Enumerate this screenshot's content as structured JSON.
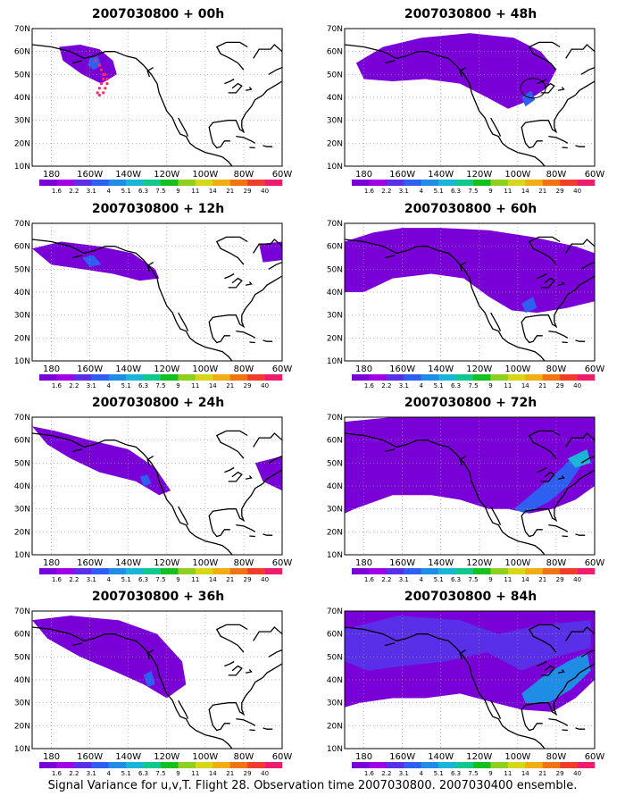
{
  "figure": {
    "caption": "Signal Variance for u,v,T. Flight 28. Observation time 2007030800. 2007030400 ensemble.",
    "lat_labels": [
      "10N",
      "20N",
      "30N",
      "40N",
      "50N",
      "60N",
      "70N"
    ],
    "lon_labels": [
      "180",
      "160W",
      "140W",
      "120W",
      "100W",
      "80W",
      "60W"
    ],
    "colorbar": {
      "labels": [
        "1.6",
        "2.2",
        "3.1",
        "4",
        "5.1",
        "6.3",
        "7.5",
        "9",
        "11",
        "14",
        "21",
        "29",
        "40"
      ],
      "colors": [
        "#7a00d8",
        "#a000e6",
        "#5a2fe8",
        "#2f5ff0",
        "#1f8ce6",
        "#19b5d6",
        "#11c88c",
        "#14c020",
        "#8fd01e",
        "#d8d618",
        "#f0ae14",
        "#f07412",
        "#f03c2a",
        "#ee1c6e"
      ]
    },
    "panels": [
      {
        "title": "2007030800 + 00h"
      },
      {
        "title": "2007030800 + 48h"
      },
      {
        "title": "2007030800 + 12h"
      },
      {
        "title": "2007030800 + 60h"
      },
      {
        "title": "2007030800 + 24h"
      },
      {
        "title": "2007030800 + 72h"
      },
      {
        "title": "2007030800 + 36h"
      },
      {
        "title": "2007030800 + 84h"
      }
    ]
  }
}
